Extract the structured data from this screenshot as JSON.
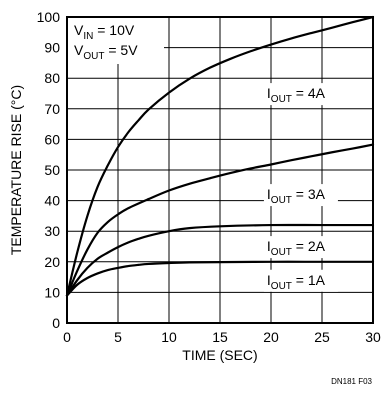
{
  "chart_data": {
    "type": "line",
    "title": "",
    "xlabel": "TIME (SEC)",
    "ylabel": "TEMPERATURE RISE (°C)",
    "xlim": [
      0,
      30
    ],
    "ylim": [
      0,
      100
    ],
    "x_ticks": [
      0,
      5,
      10,
      15,
      20,
      25,
      30
    ],
    "y_ticks": [
      0,
      10,
      20,
      30,
      40,
      50,
      60,
      70,
      80,
      90,
      100
    ],
    "grid": true,
    "conditions": [
      {
        "main": "V",
        "sub": "IN",
        "rest": " = 10V"
      },
      {
        "main": "V",
        "sub": "OUT",
        "rest": " = 5V"
      }
    ],
    "series": [
      {
        "name": "4A",
        "label": {
          "main": "I",
          "sub": "OUT",
          "rest": " = 4A"
        },
        "x": [
          0,
          1,
          2,
          3,
          4,
          5,
          6,
          7,
          8,
          10,
          12,
          14,
          16,
          18,
          20,
          22,
          24,
          26,
          28,
          30
        ],
        "y": [
          9,
          23,
          35,
          44.5,
          51.5,
          57.5,
          62.3,
          66.2,
          69.8,
          75.3,
          79.8,
          83.4,
          86.3,
          88.8,
          91,
          93,
          94.8,
          96.5,
          98.3,
          100
        ]
      },
      {
        "name": "3A",
        "label": {
          "main": "I",
          "sub": "OUT",
          "rest": " = 3A"
        },
        "x": [
          0,
          1,
          2,
          3,
          4,
          5,
          6,
          8,
          10,
          12,
          14,
          16,
          18,
          20,
          22,
          24,
          26,
          28,
          30
        ],
        "y": [
          9,
          17,
          24,
          29.5,
          33,
          35.5,
          37.5,
          40.5,
          43.3,
          45.5,
          47.3,
          49,
          50.5,
          51.8,
          53.2,
          54.5,
          55.8,
          57,
          58.3
        ]
      },
      {
        "name": "2A",
        "label": {
          "main": "I",
          "sub": "OUT",
          "rest": " = 2A"
        },
        "x": [
          0,
          1,
          2,
          3,
          4,
          5,
          6,
          7,
          8,
          10,
          12,
          15,
          20,
          25,
          30
        ],
        "y": [
          9,
          14,
          18,
          21,
          23,
          24.8,
          26.3,
          27.5,
          28.5,
          30,
          31,
          31.6,
          32,
          32,
          32
        ]
      },
      {
        "name": "1A",
        "label": {
          "main": "I",
          "sub": "OUT",
          "rest": " = 1A"
        },
        "x": [
          0,
          1,
          2,
          3,
          4,
          5,
          6,
          7,
          8,
          10,
          12,
          15,
          20,
          25,
          30
        ],
        "y": [
          9,
          12.5,
          14.7,
          16.2,
          17.3,
          18,
          18.6,
          19,
          19.3,
          19.6,
          19.8,
          19.9,
          20,
          20,
          20
        ]
      }
    ]
  },
  "footnote": "DN181 F03"
}
